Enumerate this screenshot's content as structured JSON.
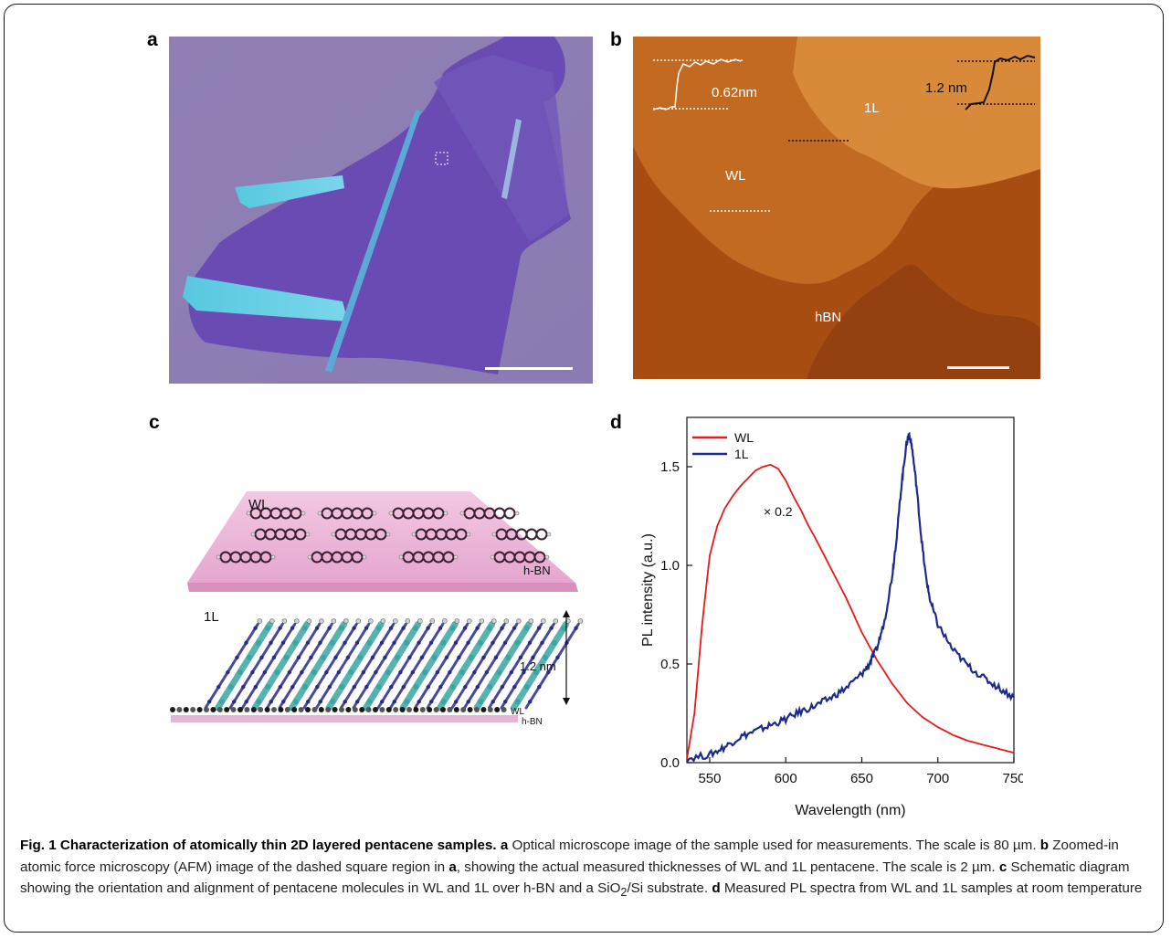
{
  "panels": {
    "a": {
      "label": "a"
    },
    "b": {
      "label": "b",
      "height_left": "0.62nm",
      "height_right": "1.2 nm",
      "region_1L": "1L",
      "region_WL": "WL",
      "region_hBN": "hBN"
    },
    "c": {
      "label": "c",
      "top_layer": "WL",
      "top_substrate": "h-BN",
      "bottom_layer": "1L",
      "thickness": "1.2 nm",
      "bottom_wl": "WL",
      "bottom_substrate": "h-BN"
    },
    "d": {
      "label": "d"
    }
  },
  "chart_data": {
    "type": "line",
    "xlabel": "Wavelength (nm)",
    "ylabel": "PL intensity (a.u.)",
    "xlim": [
      535,
      750
    ],
    "ylim": [
      0,
      1.75
    ],
    "xticks": [
      "550",
      "600",
      "650",
      "700",
      "750"
    ],
    "yticks": [
      "0.0",
      "0.5",
      "1.0",
      "1.5"
    ],
    "annotation": "× 0.2",
    "legend_position": "top-left",
    "series": [
      {
        "name": "WL",
        "color": "#e8191a",
        "x": [
          535,
          540,
          545,
          550,
          555,
          560,
          565,
          570,
          575,
          580,
          585,
          590,
          595,
          600,
          605,
          610,
          615,
          620,
          630,
          640,
          650,
          660,
          670,
          680,
          690,
          700,
          710,
          720,
          730,
          740,
          750
        ],
        "y": [
          0.02,
          0.25,
          0.7,
          1.05,
          1.2,
          1.29,
          1.35,
          1.4,
          1.44,
          1.48,
          1.5,
          1.51,
          1.49,
          1.43,
          1.35,
          1.28,
          1.2,
          1.13,
          0.98,
          0.83,
          0.66,
          0.52,
          0.4,
          0.3,
          0.23,
          0.18,
          0.14,
          0.11,
          0.09,
          0.07,
          0.05
        ]
      },
      {
        "name": "1L",
        "color": "#1c2a8c",
        "x": [
          535,
          550,
          560,
          570,
          580,
          590,
          600,
          610,
          620,
          630,
          640,
          650,
          655,
          660,
          665,
          670,
          673,
          676,
          679,
          681,
          683,
          686,
          689,
          692,
          695,
          700,
          710,
          720,
          730,
          740,
          750
        ],
        "y": [
          0.02,
          0.04,
          0.08,
          0.13,
          0.16,
          0.19,
          0.22,
          0.26,
          0.29,
          0.33,
          0.38,
          0.45,
          0.5,
          0.58,
          0.72,
          0.95,
          1.15,
          1.4,
          1.6,
          1.67,
          1.6,
          1.4,
          1.15,
          0.95,
          0.82,
          0.7,
          0.57,
          0.49,
          0.43,
          0.38,
          0.33
        ]
      }
    ]
  },
  "caption": {
    "title": "Fig. 1 Characterization of atomically thin 2D layered pentacene samples.",
    "a_letter": "a",
    "a_text": " Optical microscope image of the sample used for measurements. The scale is 80 µm. ",
    "b_letter": "b",
    "b_text": " Zoomed-in atomic force microscopy (AFM) image of the dashed square region in ",
    "b_ref": "a",
    "b_text2": ", showing the actual measured thicknesses of WL and 1L pentacene. The scale is 2 µm. ",
    "c_letter": "c",
    "c_text": " Schematic diagram showing the orientation and alignment of pentacene molecules in WL and 1L over h-BN and a SiO",
    "c_sub": "2",
    "c_text2": "/Si substrate. ",
    "d_letter": "d",
    "d_text": " Measured PL spectra from WL and 1L samples at room temperature"
  }
}
